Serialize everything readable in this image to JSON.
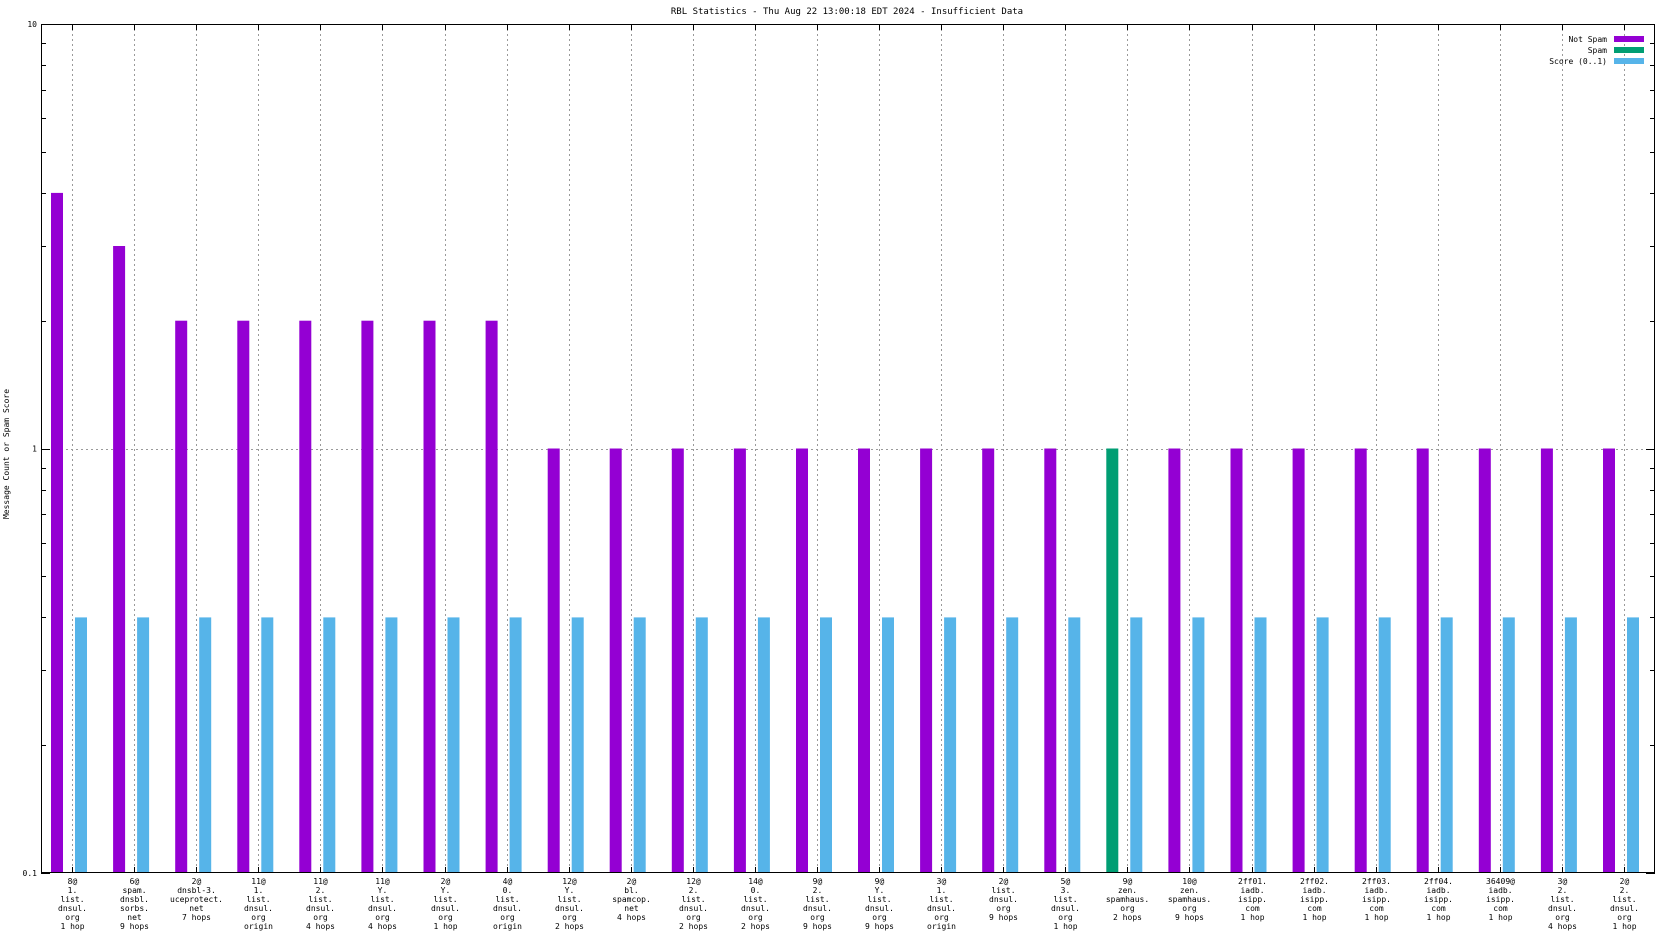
{
  "chart_data": {
    "type": "bar",
    "title": "RBL Statistics - Thu Aug 22 13:00:18 EDT 2024 - Insufficient Data",
    "ylabel": "Message Count or Spam Score",
    "xlabel": "",
    "yscale": "log",
    "ylim": [
      0.1,
      10
    ],
    "y_ticks": [
      "10",
      "1",
      "0.1"
    ],
    "grid": true,
    "legend_position": "top-right",
    "categories": [
      [
        "8@",
        "1.",
        "list.",
        "dnsul.",
        "org",
        "1 hop"
      ],
      [
        "6@",
        "spam.",
        "dnsbl.",
        "sorbs.",
        "net",
        "9 hops"
      ],
      [
        "2@",
        "dnsbl-3.",
        "uceprotect.",
        "net",
        "7 hops"
      ],
      [
        "11@",
        "1.",
        "list.",
        "dnsul.",
        "org",
        "origin"
      ],
      [
        "11@",
        "2.",
        "list.",
        "dnsul.",
        "org",
        "4 hops"
      ],
      [
        "11@",
        "Y.",
        "list.",
        "dnsul.",
        "org",
        "4 hops"
      ],
      [
        "2@",
        "Y.",
        "list.",
        "dnsul.",
        "org",
        "1 hop"
      ],
      [
        "4@",
        "0.",
        "list.",
        "dnsul.",
        "org",
        "origin"
      ],
      [
        "12@",
        "Y.",
        "list.",
        "dnsul.",
        "org",
        "2 hops"
      ],
      [
        "2@",
        "bl.",
        "spamcop.",
        "net",
        "4 hops"
      ],
      [
        "12@",
        "2.",
        "list.",
        "dnsul.",
        "org",
        "2 hops"
      ],
      [
        "14@",
        "0.",
        "list.",
        "dnsul.",
        "org",
        "2 hops"
      ],
      [
        "9@",
        "2.",
        "list.",
        "dnsul.",
        "org",
        "9 hops"
      ],
      [
        "9@",
        "Y.",
        "list.",
        "dnsul.",
        "org",
        "9 hops"
      ],
      [
        "3@",
        "1.",
        "list.",
        "dnsul.",
        "org",
        "origin"
      ],
      [
        "2@",
        "list.",
        "dnsul.",
        "org",
        "9 hops"
      ],
      [
        "5@",
        "3.",
        "list.",
        "dnsul.",
        "org",
        "1 hop"
      ],
      [
        "9@",
        "zen.",
        "spamhaus.",
        "org",
        "2 hops"
      ],
      [
        "10@",
        "zen.",
        "spamhaus.",
        "org",
        "9 hops"
      ],
      [
        "2ff01.",
        "iadb.",
        "isipp.",
        "com",
        "1 hop"
      ],
      [
        "2ff02.",
        "iadb.",
        "isipp.",
        "com",
        "1 hop"
      ],
      [
        "2ff03.",
        "iadb.",
        "isipp.",
        "com",
        "1 hop"
      ],
      [
        "2ff04.",
        "iadb.",
        "isipp.",
        "com",
        "1 hop"
      ],
      [
        "36409@",
        "iadb.",
        "isipp.",
        "com",
        "1 hop"
      ],
      [
        "3@",
        "2.",
        "list.",
        "dnsul.",
        "org",
        "4 hops"
      ],
      [
        "2@",
        "2.",
        "list.",
        "dnsul.",
        "org",
        "1 hop"
      ]
    ],
    "series": [
      {
        "name": "Not Spam",
        "color": "#9400d3",
        "values": [
          4,
          3,
          2,
          2,
          2,
          2,
          2,
          2,
          1,
          1,
          1,
          1,
          1,
          1,
          1,
          1,
          1,
          0,
          1,
          1,
          1,
          1,
          1,
          1,
          1,
          1
        ]
      },
      {
        "name": "Spam",
        "color": "#009e73",
        "values": [
          0,
          0,
          0,
          0,
          0,
          0,
          0,
          0,
          0,
          0,
          0,
          0,
          0,
          0,
          0,
          0,
          0,
          1,
          0,
          0,
          0,
          0,
          0,
          0,
          0,
          0
        ]
      },
      {
        "name": "Score (0..1)",
        "color": "#56b4e9",
        "values": [
          0.4,
          0.4,
          0.4,
          0.4,
          0.4,
          0.4,
          0.4,
          0.4,
          0.4,
          0.4,
          0.4,
          0.4,
          0.4,
          0.4,
          0.4,
          0.4,
          0.4,
          0.4,
          0.4,
          0.4,
          0.4,
          0.4,
          0.4,
          0.4,
          0.4,
          0.4
        ]
      }
    ]
  }
}
